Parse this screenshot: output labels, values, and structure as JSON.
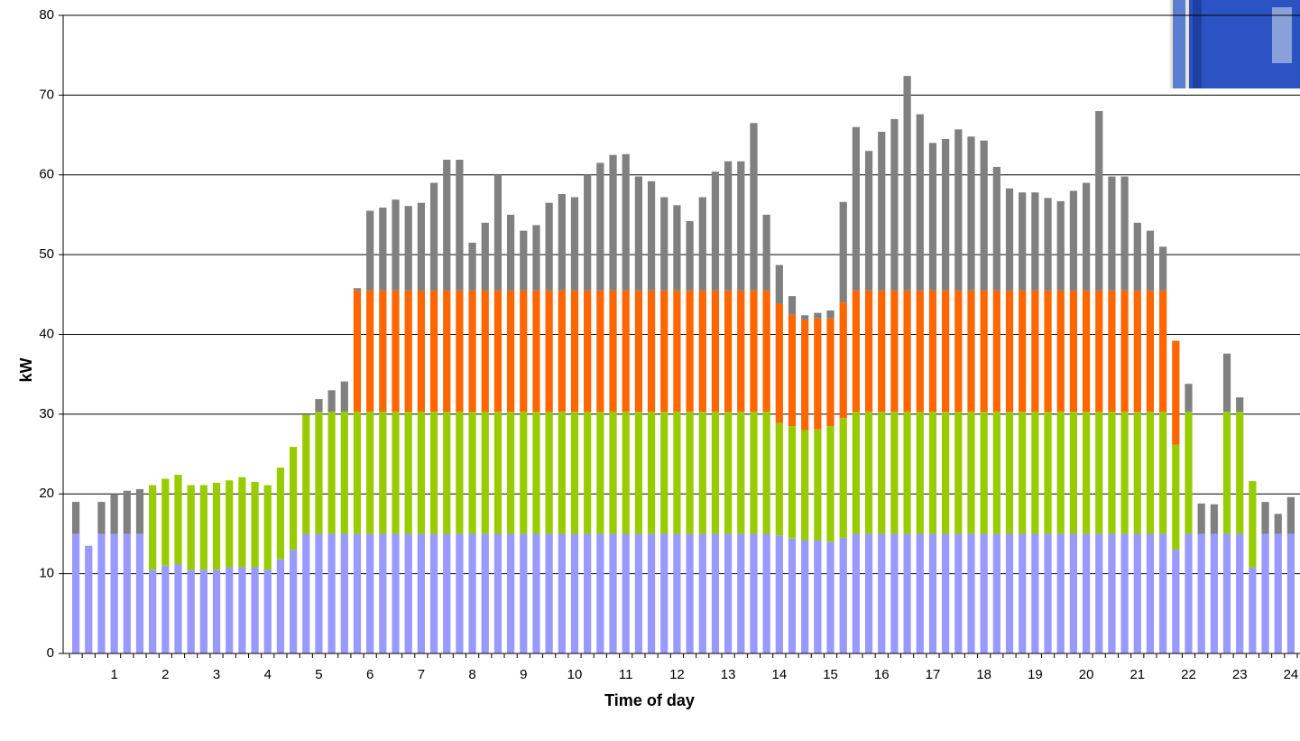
{
  "chart_data": {
    "type": "stacked-bar",
    "x_label": "Time of day",
    "y_label": "kW",
    "categories": [
      null,
      null,
      null,
      "1",
      null,
      null,
      null,
      "2",
      null,
      null,
      null,
      "3",
      null,
      null,
      null,
      "4",
      null,
      null,
      null,
      "5",
      null,
      null,
      null,
      "6",
      null,
      null,
      null,
      "7",
      null,
      null,
      null,
      "8",
      null,
      null,
      null,
      "9",
      null,
      null,
      null,
      "10",
      null,
      null,
      null,
      "11",
      null,
      null,
      null,
      "12",
      null,
      null,
      null,
      "13",
      null,
      null,
      null,
      "14",
      null,
      null,
      null,
      "15",
      null,
      null,
      null,
      "16",
      null,
      null,
      null,
      "17",
      null,
      null,
      null,
      "18",
      null,
      null,
      null,
      "19",
      null,
      null,
      null,
      "20",
      null,
      null,
      null,
      "21",
      null,
      null,
      null,
      "22",
      null,
      null,
      null,
      "23",
      null,
      null,
      null,
      "24"
    ],
    "series": [
      {
        "color": "#9999ff",
        "values": [
          15,
          13.5,
          15,
          15,
          15,
          15,
          10.5,
          11,
          11.2,
          10.5,
          10.5,
          10.5,
          10.8,
          10.8,
          10.8,
          10.5,
          11.8,
          13,
          15,
          15,
          15,
          15,
          15,
          15,
          15,
          15,
          15,
          15,
          15,
          15,
          15,
          15,
          15,
          15,
          15,
          15,
          15,
          15,
          15,
          15,
          15,
          15,
          15,
          15,
          15,
          15,
          15,
          15,
          15,
          15,
          15,
          15,
          15,
          15,
          15,
          14.8,
          14.4,
          14.2,
          14.2,
          14,
          14.5,
          15,
          15,
          15,
          15,
          15,
          15,
          15,
          15,
          15,
          15,
          15,
          15,
          15,
          15,
          15,
          15,
          15,
          15,
          15,
          15,
          15,
          15,
          15,
          15,
          15,
          13,
          15,
          15,
          15,
          15,
          15,
          10.8,
          15,
          15,
          15
        ]
      },
      {
        "color": "#99cc00",
        "values": [
          0,
          0,
          0,
          0,
          0,
          0,
          10.6,
          10.9,
          11.2,
          10.6,
          10.6,
          10.9,
          10.9,
          11.3,
          10.7,
          10.6,
          11.5,
          12.9,
          14.9,
          15.3,
          15.3,
          15.3,
          15.3,
          15.3,
          15.3,
          15.3,
          15.3,
          15.3,
          15.3,
          15.3,
          15.3,
          15.3,
          15.3,
          15.3,
          15.3,
          15.3,
          15.3,
          15.3,
          15.3,
          15.3,
          15.3,
          15.3,
          15.3,
          15.3,
          15.3,
          15.3,
          15.3,
          15.3,
          15.3,
          15.3,
          15.3,
          15.3,
          15.3,
          15.3,
          15.3,
          14.1,
          14.1,
          13.8,
          13.9,
          14.5,
          15,
          15.3,
          15.3,
          15.3,
          15.3,
          15.3,
          15.3,
          15.3,
          15.3,
          15.3,
          15.3,
          15.3,
          15.3,
          15.3,
          15.3,
          15.3,
          15.3,
          15.3,
          15.3,
          15.3,
          15.3,
          15.3,
          15.3,
          15.3,
          15.3,
          15.3,
          13.2,
          15.3,
          0,
          0,
          15.3,
          15.3,
          10.8,
          0,
          0,
          0
        ]
      },
      {
        "color": "#ff6600",
        "values": [
          0,
          0,
          0,
          0,
          0,
          0,
          0,
          0,
          0,
          0,
          0,
          0,
          0,
          0,
          0,
          0,
          0,
          0,
          0,
          0,
          0,
          0,
          15.2,
          15.2,
          15.2,
          15.2,
          15.2,
          15.2,
          15.2,
          15.2,
          15.2,
          15.2,
          15.2,
          15.2,
          15.2,
          15.2,
          15.2,
          15.2,
          15.2,
          15.2,
          15.2,
          15.2,
          15.2,
          15.2,
          15.2,
          15.2,
          15.2,
          15.2,
          15.2,
          15.2,
          15.2,
          15.2,
          15.2,
          15.2,
          15.2,
          14.9,
          14,
          13.8,
          13.9,
          13.5,
          14.5,
          15.2,
          15.2,
          15.2,
          15.2,
          15.2,
          15.2,
          15.2,
          15.2,
          15.2,
          15.2,
          15.2,
          15.2,
          15.2,
          15.2,
          15.2,
          15.2,
          15.2,
          15.2,
          15.2,
          15.2,
          15.2,
          15.2,
          15.2,
          15.2,
          15.2,
          13,
          0,
          0,
          0,
          0,
          0,
          0,
          0,
          0,
          0
        ]
      },
      {
        "color": "#808080",
        "values": [
          4,
          0,
          4,
          5,
          5.4,
          5.6,
          0,
          0,
          0,
          0,
          0,
          0,
          0,
          0,
          0,
          0,
          0,
          0,
          0,
          1.6,
          2.7,
          3.8,
          0.3,
          10,
          10.4,
          11.4,
          10.6,
          11,
          13.5,
          16.4,
          16.4,
          6,
          8.5,
          14.5,
          9.5,
          7.5,
          8.2,
          11,
          12.1,
          11.7,
          14.5,
          16,
          17,
          17.1,
          14.3,
          13.7,
          11.7,
          10.7,
          8.7,
          11.7,
          14.9,
          16.2,
          16.2,
          21,
          9.5,
          4.9,
          2.3,
          0.6,
          0.7,
          1,
          12.6,
          20.5,
          17.5,
          19.9,
          21.5,
          26.9,
          22.1,
          18.5,
          19,
          20.2,
          19.3,
          18.8,
          15.5,
          12.8,
          12.3,
          12.3,
          11.6,
          11.2,
          12.5,
          13.5,
          22.5,
          14.3,
          14.3,
          8.5,
          7.5,
          5.5,
          0,
          3.5,
          3.8,
          3.7,
          7.3,
          1.8,
          0,
          4,
          2.5,
          4.6
        ]
      }
    ],
    "ylim": [
      0,
      80
    ],
    "yticks": [
      0,
      10,
      20,
      30,
      40,
      50,
      60,
      70,
      80
    ],
    "grid": true
  }
}
